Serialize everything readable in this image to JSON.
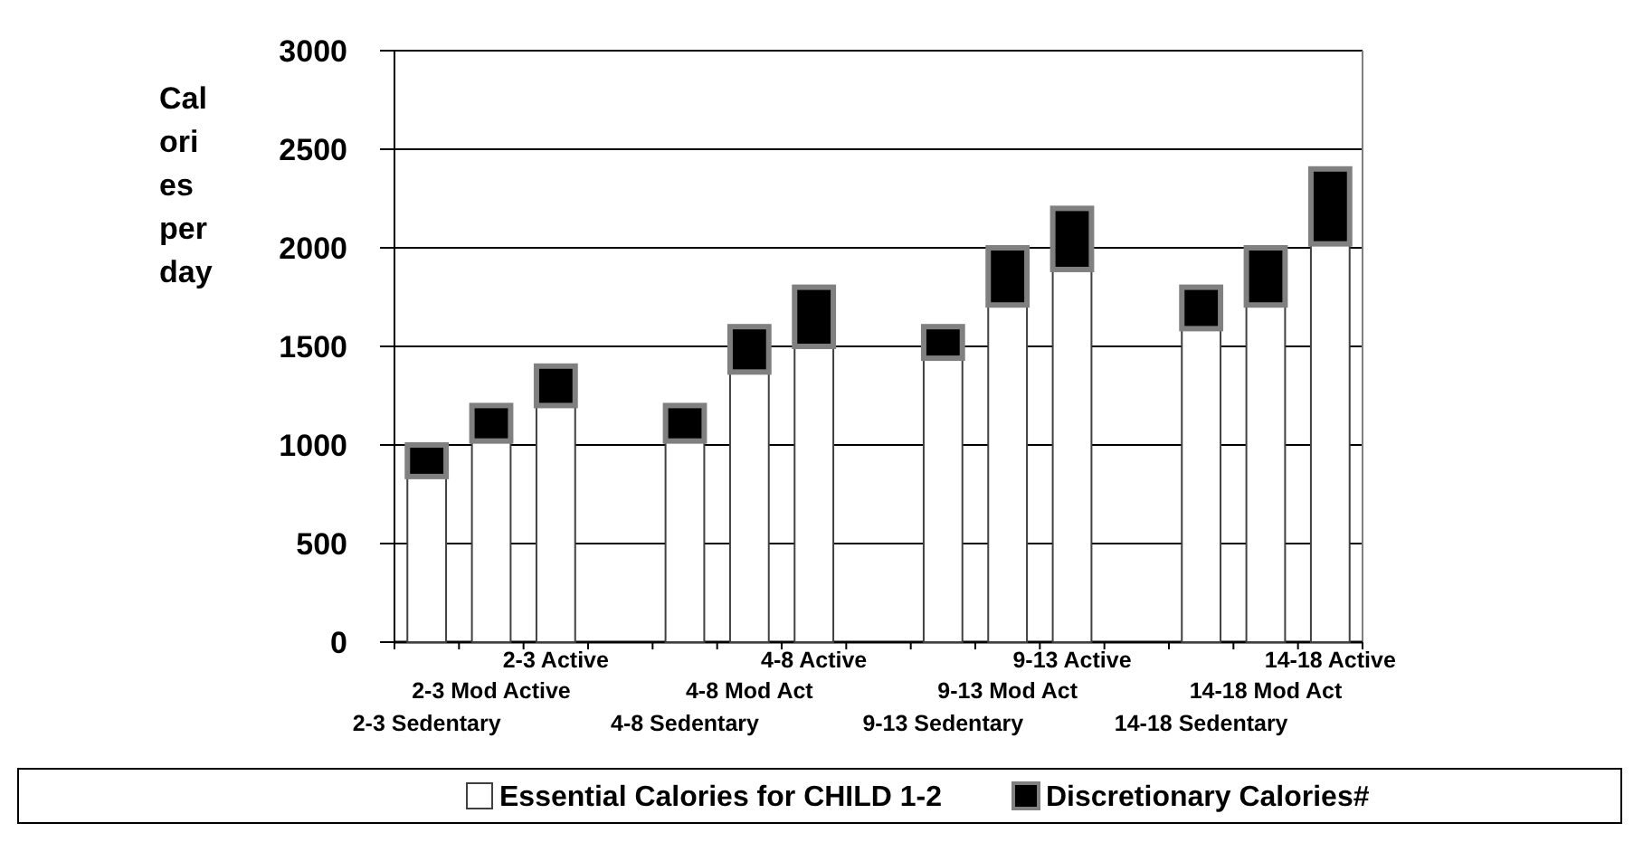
{
  "chart_data": {
    "type": "bar",
    "stacked": true,
    "ylabel": "Calories per day",
    "categories": [
      "2-3 Sedentary",
      "2-3 Mod Active",
      "2-3 Active",
      null,
      "4-8 Sedentary",
      "4-8 Mod Act",
      "4-8 Active",
      null,
      "9-13 Sedentary",
      "9-13 Mod Act",
      "9-13 Active",
      null,
      "14-18 Sedentary",
      "14-18 Mod Act",
      "14-18 Active"
    ],
    "series": [
      {
        "name": "Essential Calories for CHILD 1-2",
        "color": "#ffffff",
        "values": [
          840,
          1020,
          1200,
          null,
          1020,
          1370,
          1500,
          null,
          1440,
          1710,
          1890,
          null,
          1590,
          1710,
          2020
        ]
      },
      {
        "name": "Discretionary Calories#",
        "color": "#000000",
        "values": [
          160,
          180,
          200,
          null,
          180,
          230,
          300,
          null,
          160,
          290,
          310,
          null,
          210,
          290,
          380
        ]
      }
    ],
    "ylim": [
      0,
      3000
    ],
    "yticks": [
      0,
      500,
      1000,
      1500,
      2000,
      2500,
      3000
    ],
    "grid": "y",
    "legend": "bottom"
  }
}
